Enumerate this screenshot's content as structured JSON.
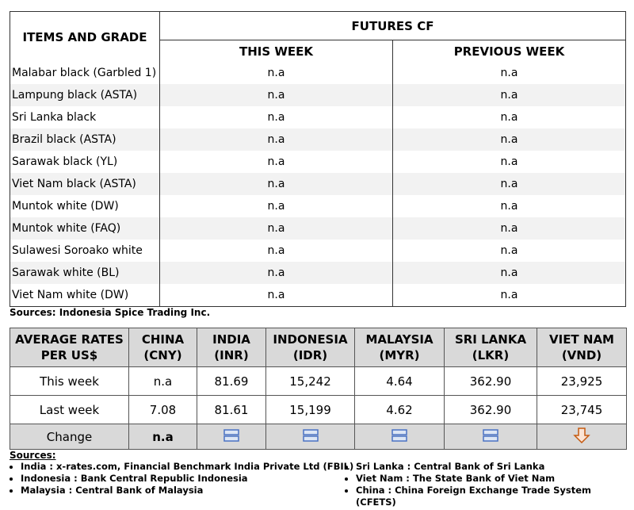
{
  "table1": {
    "header": {
      "items": "ITEMS AND GRADE",
      "futures": "FUTURES CF",
      "this_week": "THIS WEEK",
      "previous_week": "PREVIOUS WEEK"
    },
    "rows": [
      [
        "Malabar black (Garbled 1)",
        "n.a",
        "n.a"
      ],
      [
        "Lampung black (ASTA)",
        "n.a",
        "n.a"
      ],
      [
        "Sri Lanka black",
        "n.a",
        "n.a"
      ],
      [
        "Brazil black (ASTA)",
        "n.a",
        "n.a"
      ],
      [
        "Sarawak black (YL)",
        "n.a",
        "n.a"
      ],
      [
        "Viet Nam black (ASTA)",
        "n.a",
        "n.a"
      ],
      [
        "Muntok white (DW)",
        "n.a",
        "n.a"
      ],
      [
        "Muntok white (FAQ)",
        "n.a",
        "n.a"
      ],
      [
        "Sulawesi Soroako white",
        "n.a",
        "n.a"
      ],
      [
        "Sarawak  white (BL)",
        "n.a",
        "n.a"
      ],
      [
        "Viet Nam white (DW)",
        "n.a",
        "n.a"
      ]
    ]
  },
  "sources1": "Sources: Indonesia Spice Trading Inc.",
  "table2": {
    "header": [
      "AVERAGE RATES PER US$",
      "CHINA (CNY)",
      "INDIA (INR)",
      "INDONESIA (IDR)",
      "MALAYSIA (MYR)",
      "SRI LANKA (LKR)",
      "VIET NAM (VND)"
    ],
    "rows": [
      [
        "This week",
        "n.a",
        "81.69",
        "15,242",
        "4.64",
        "362.90",
        "23,925"
      ],
      [
        "Last week",
        "7.08",
        "81.61",
        "15,199",
        "4.62",
        "362.90",
        "23,745"
      ]
    ],
    "change": [
      "Change",
      "n.a"
    ]
  },
  "sources2": {
    "title": "Sources:",
    "left": [
      "India : x-rates.com, Financial Benchmark India Private Ltd (FBIL)",
      "Indonesia : Bank Central Republic Indonesia",
      "Malaysia : Central Bank of Malaysia"
    ],
    "right": [
      "Sri Lanka : Central Bank of Sri Lanka",
      "Viet Nam : The State Bank of Viet Nam",
      "China : China Foreign Exchange Trade System (CFETS)"
    ]
  }
}
